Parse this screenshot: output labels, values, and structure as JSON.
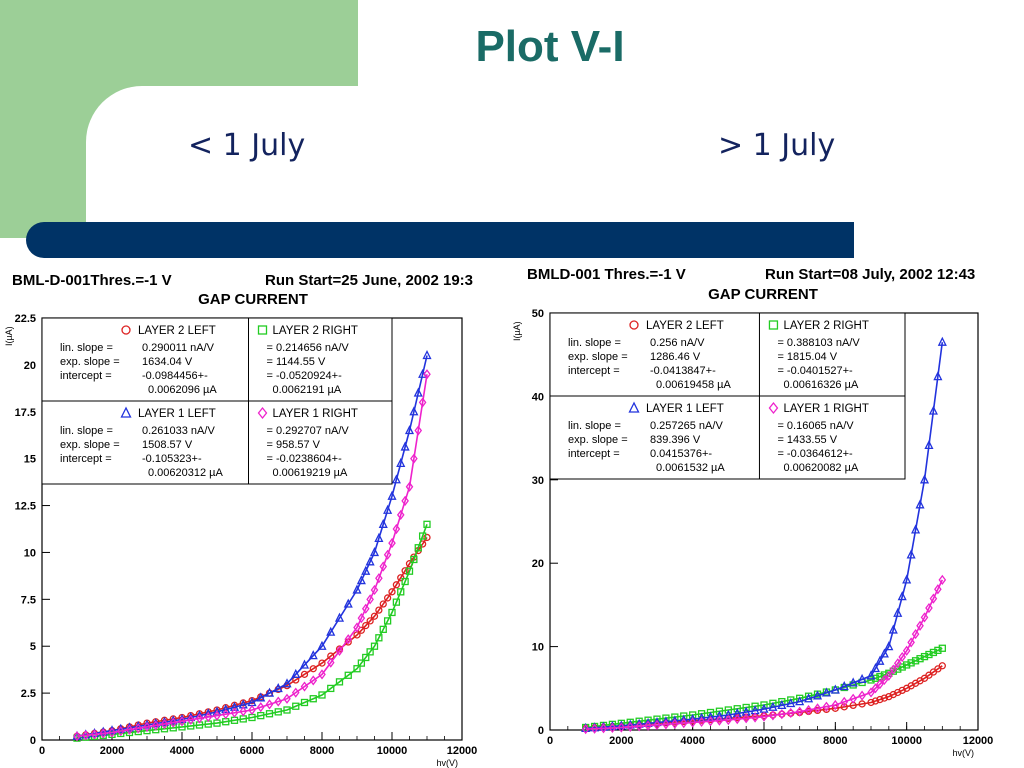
{
  "slide": {
    "title": "Plot V-I",
    "left_caption": "< 1 July",
    "right_caption": "> 1 July",
    "colors": {
      "green_block": "#9ccf97",
      "bar": "#003366",
      "title": "#1a6b66",
      "caption": "#13235e"
    }
  },
  "chart_data": [
    {
      "type": "scatter",
      "header_left": "BML-D-001Thres.=-1 V",
      "header_right": "Run Start=25 June, 2002 19:3",
      "title": "GAP CURRENT",
      "ylabel": "I(µA)",
      "xlabel": "hv(V)",
      "xlim": [
        0,
        12000
      ],
      "ylim": [
        0,
        22.5
      ],
      "xticks": [
        "0",
        "2000",
        "4000",
        "6000",
        "8000",
        "10000",
        "12000"
      ],
      "yticks": [
        "0",
        "2.5",
        "5",
        "7.5",
        "10",
        "12.5",
        "15",
        "17.5",
        "20",
        "22.5"
      ],
      "series": [
        {
          "name": "LAYER 2 LEFT",
          "marker": "circle",
          "color": "#dd2222",
          "lin_slope": "0.290011 nA/V",
          "exp_slope": "1634.04 V",
          "intercept": "-0.0984456+-",
          "intercept_err": "0.0062096 µA",
          "x": [
            1000,
            2000,
            3000,
            4000,
            5000,
            6000,
            7000,
            8000,
            9000,
            9500,
            10000,
            10500,
            11000
          ],
          "y": [
            0.2,
            0.5,
            0.9,
            1.2,
            1.6,
            2.1,
            2.9,
            4.1,
            5.6,
            6.6,
            7.9,
            9.4,
            10.8
          ]
        },
        {
          "name": "LAYER 2 RIGHT",
          "marker": "square",
          "color": "#22cc22",
          "lin_slope": "= 0.214656 nA/V",
          "exp_slope": "= 1144.55 V",
          "intercept": "= -0.0520924+-",
          "intercept_err": "0.0062191 µA",
          "x": [
            1000,
            2000,
            3000,
            4000,
            5000,
            6000,
            7000,
            8000,
            9000,
            9500,
            10000,
            10500,
            11000
          ],
          "y": [
            0.1,
            0.3,
            0.5,
            0.7,
            0.9,
            1.2,
            1.6,
            2.4,
            3.8,
            5.0,
            6.8,
            9.0,
            11.5
          ]
        },
        {
          "name": "LAYER 1 LEFT",
          "marker": "triangle",
          "color": "#2233dd",
          "lin_slope": "0.261033 nA/V",
          "exp_slope": "1508.57 V",
          "intercept": "-0.105323+-",
          "intercept_err": "0.00620312 µA",
          "x": [
            1000,
            2000,
            3000,
            4000,
            5000,
            6000,
            7000,
            8000,
            9000,
            9500,
            10000,
            10500,
            11000
          ],
          "y": [
            0.2,
            0.5,
            0.8,
            1.1,
            1.5,
            2.0,
            3.0,
            5.0,
            8.0,
            10.0,
            13.0,
            16.5,
            20.5
          ]
        },
        {
          "name": "LAYER 1 RIGHT",
          "marker": "diamond",
          "color": "#ee22cc",
          "lin_slope": "= 0.292707 nA/V",
          "exp_slope": "= 958.57 V",
          "intercept": "= -0.0238604+-",
          "intercept_err": "0.00619219 µA",
          "x": [
            1000,
            2000,
            3000,
            4000,
            5000,
            6000,
            7000,
            8000,
            9000,
            9500,
            10000,
            10500,
            11000
          ],
          "y": [
            0.2,
            0.4,
            0.7,
            1.0,
            1.3,
            1.6,
            2.2,
            3.5,
            6.0,
            8.0,
            10.5,
            13.5,
            19.5
          ]
        }
      ]
    },
    {
      "type": "scatter",
      "header_left": "BMLD-001 Thres.=-1 V",
      "header_right": "Run Start=08 July, 2002 12:43",
      "title": "GAP CURRENT",
      "ylabel": "I(µA)",
      "xlabel": "hv(V)",
      "xlim": [
        0,
        12000
      ],
      "ylim": [
        0,
        50
      ],
      "xticks": [
        "0",
        "2000",
        "4000",
        "6000",
        "8000",
        "10000",
        "12000"
      ],
      "yticks": [
        "0",
        "10",
        "20",
        "30",
        "40",
        "50"
      ],
      "series": [
        {
          "name": "LAYER 2 LEFT",
          "marker": "circle",
          "color": "#dd2222",
          "lin_slope": "0.256 nA/V",
          "exp_slope": "1286.46 V",
          "intercept": "-0.0413847+-",
          "intercept_err": "0.00619458 µA",
          "x": [
            1000,
            2000,
            3000,
            4000,
            5000,
            6000,
            7000,
            8000,
            9000,
            9500,
            10000,
            10500,
            11000
          ],
          "y": [
            0.2,
            0.5,
            0.8,
            1.1,
            1.4,
            1.7,
            2.1,
            2.6,
            3.3,
            4.0,
            5.0,
            6.2,
            7.7
          ]
        },
        {
          "name": "LAYER 2 RIGHT",
          "marker": "square",
          "color": "#22cc22",
          "lin_slope": "= 0.388103 nA/V",
          "exp_slope": "= 1815.04 V",
          "intercept": "= -0.0401527+-",
          "intercept_err": "0.00616326 µA",
          "x": [
            1000,
            2000,
            3000,
            4000,
            5000,
            6000,
            7000,
            8000,
            9000,
            9500,
            10000,
            10500,
            11000
          ],
          "y": [
            0.3,
            0.8,
            1.3,
            1.8,
            2.4,
            3.0,
            3.8,
            4.8,
            6.0,
            6.8,
            7.8,
            8.8,
            9.8
          ]
        },
        {
          "name": "LAYER 1 LEFT",
          "marker": "triangle",
          "color": "#2233dd",
          "lin_slope": "0.257265 nA/V",
          "exp_slope": "839.396 V",
          "intercept": "0.0415376+-",
          "intercept_err": "0.0061532 µA",
          "x": [
            1000,
            2000,
            3000,
            4000,
            5000,
            6000,
            7000,
            8000,
            9000,
            9500,
            10000,
            10500,
            11000
          ],
          "y": [
            0.2,
            0.5,
            0.9,
            1.3,
            1.8,
            2.5,
            3.4,
            4.8,
            6.5,
            10.0,
            18.0,
            30.0,
            46.5
          ]
        },
        {
          "name": "LAYER 1 RIGHT",
          "marker": "diamond",
          "color": "#ee22cc",
          "lin_slope": "= 0.16065 nA/V",
          "exp_slope": "= 1433.55 V",
          "intercept": "= -0.0364612+-",
          "intercept_err": "0.00620082 µA",
          "x": [
            1000,
            2000,
            3000,
            4000,
            5000,
            6000,
            7000,
            8000,
            9000,
            9500,
            10000,
            10500,
            11000
          ],
          "y": [
            0.1,
            0.3,
            0.6,
            0.9,
            1.2,
            1.6,
            2.2,
            3.0,
            4.5,
            6.5,
            9.5,
            13.5,
            18.0
          ]
        }
      ],
      "legend_labels": {
        "lin": "lin. slope =",
        "exp": "exp. slope =",
        "int": "intercept ="
      }
    }
  ]
}
